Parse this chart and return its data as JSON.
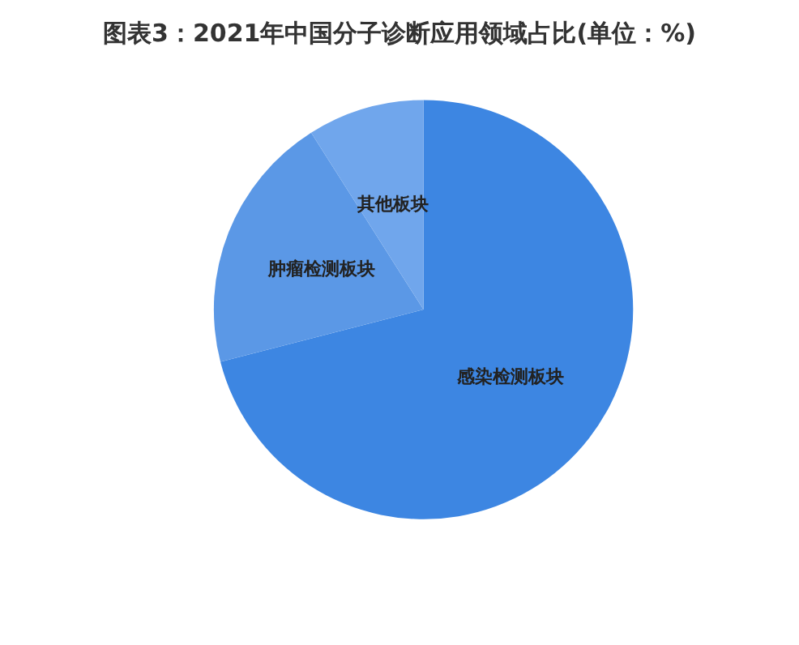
{
  "chart_data": {
    "type": "pie",
    "title": "图表3：2021年中国分子诊断应用领域占比(单位：%)",
    "categories": [
      "感染检测板块",
      "肿瘤检测板块",
      "其他板块"
    ],
    "values": [
      71,
      20,
      9
    ],
    "colors": [
      "#3d86e2",
      "#5b98e6",
      "#70a6ec"
    ],
    "legend": false
  }
}
